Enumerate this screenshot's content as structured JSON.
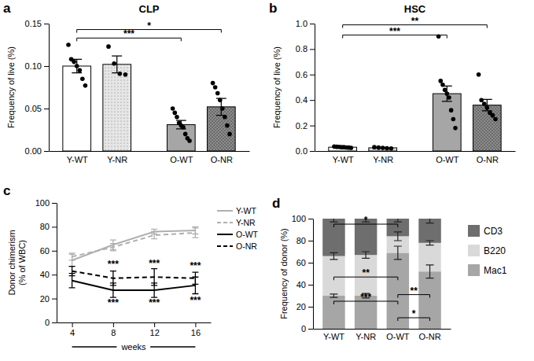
{
  "chart_data": [
    {
      "panel": "a",
      "type": "bar",
      "title": "CLP",
      "y_label": "Frequency of live (%)",
      "categories": [
        "Y-WT",
        "Y-NR",
        "O-WT",
        "O-NR"
      ],
      "values": [
        0.1,
        0.102,
        0.031,
        0.052
      ],
      "errors": [
        0.008,
        0.01,
        0.005,
        0.01
      ],
      "points": [
        [
          0.125,
          0.108,
          0.105,
          0.1,
          0.095,
          0.085,
          0.077
        ],
        [
          0.123,
          0.103,
          0.091,
          0.09
        ],
        [
          0.05,
          0.045,
          0.04,
          0.033,
          0.03,
          0.028,
          0.02,
          0.015,
          0.012
        ],
        [
          0.08,
          0.075,
          0.068,
          0.06,
          0.05,
          0.04,
          0.03,
          0.02
        ]
      ],
      "colors": [
        "#ffffff",
        "#e6e6e6",
        "#a6a6a6",
        "#8c8c8c"
      ],
      "ylim": [
        0,
        0.15
      ],
      "yticks": [
        {
          "value": 0,
          "label": "0.00"
        },
        0.05,
        {
          "value": 0.1,
          "label": "0.10"
        },
        0.15
      ],
      "significance": [
        {
          "from": "Y-WT",
          "to": "O-WT",
          "label": "***",
          "y": 0.133
        },
        {
          "from": "Y-WT",
          "to": "O-NR",
          "label": "*",
          "y": 0.143
        }
      ]
    },
    {
      "panel": "b",
      "type": "bar",
      "title": "HSC",
      "y_label": "Frequency of live (%)",
      "categories": [
        "Y-WT",
        "Y-NR",
        "O-WT",
        "O-NR"
      ],
      "values": [
        0.03,
        0.025,
        0.45,
        0.36
      ],
      "errors": [
        0.003,
        0.003,
        0.06,
        0.045
      ],
      "points": [
        [
          0.035,
          0.033,
          0.032,
          0.03,
          0.03,
          0.028,
          0.027,
          0.025
        ],
        [
          0.03,
          0.027,
          0.025,
          0.022,
          0.02
        ],
        [
          0.9,
          0.55,
          0.52,
          0.48,
          0.45,
          0.42,
          0.32,
          0.25,
          0.18
        ],
        [
          0.6,
          0.4,
          0.37,
          0.34,
          0.3,
          0.28,
          0.25
        ]
      ],
      "colors": [
        "#ffffff",
        "#e6e6e6",
        "#a6a6a6",
        "#8c8c8c"
      ],
      "ylim": [
        0,
        1
      ],
      "yticks": [
        {
          "value": 0,
          "label": "0.0"
        },
        0.2,
        0.4,
        0.6,
        0.8,
        {
          "value": 1,
          "label": "1.0"
        }
      ],
      "significance": [
        {
          "from": "Y-WT",
          "to": "O-WT",
          "label": "***",
          "y": 0.91
        },
        {
          "from": "Y-WT",
          "to": "O-NR",
          "label": "**",
          "y": 0.99
        }
      ]
    },
    {
      "panel": "c",
      "type": "line",
      "y_label": [
        "Donor chimerism",
        "(% of WBC)"
      ],
      "x_label": "weeks",
      "x": [
        4,
        8,
        12,
        16
      ],
      "xlim": [
        2.5,
        17.5
      ],
      "xticks": [
        4,
        8,
        12,
        16
      ],
      "ylim": [
        0,
        100
      ],
      "yticks": [
        0,
        20,
        40,
        60,
        80,
        100
      ],
      "legend": "upper right",
      "series": [
        {
          "name": "Y-WT",
          "color": "#b0b0b0",
          "line_style": "solid",
          "values": [
            52,
            65,
            76,
            77
          ],
          "errors": [
            5,
            4,
            2,
            3
          ]
        },
        {
          "name": "Y-NR",
          "color": "#b0b0b0",
          "line_style": "dashed",
          "values": [
            55,
            63,
            73,
            75
          ],
          "errors": [
            3,
            3,
            3,
            4
          ]
        },
        {
          "name": "O-WT",
          "color": "#000000",
          "line_style": "solid",
          "values": [
            35,
            27,
            27,
            31
          ],
          "errors": [
            6,
            6,
            6,
            7
          ]
        },
        {
          "name": "O-NR",
          "color": "#000000",
          "line_style": "dashed",
          "values": [
            43,
            37,
            38,
            37
          ],
          "errors": [
            4,
            6,
            7,
            5
          ]
        }
      ],
      "annotations": [
        {
          "text": "***",
          "x": 8,
          "y": 46
        },
        {
          "text": "***",
          "x": 12,
          "y": 47
        },
        {
          "text": "***",
          "x": 16,
          "y": 45
        },
        {
          "text": "***",
          "x": 8,
          "y": 14
        },
        {
          "text": "***",
          "x": 12,
          "y": 14
        },
        {
          "text": "***",
          "x": 16,
          "y": 16
        }
      ]
    },
    {
      "panel": "d",
      "type": "bar",
      "stacked": true,
      "y_label": "Frequency of donor (%)",
      "categories": [
        "Y-WT",
        "Y-NR",
        "O-WT",
        "O-NR"
      ],
      "ylim": [
        0,
        100
      ],
      "yticks": [
        0,
        20,
        40,
        60,
        80,
        100
      ],
      "legend": "right",
      "series": [
        {
          "name": "Mac1",
          "color": "#a6a6a6",
          "values": [
            30,
            30,
            69,
            52
          ],
          "errors": [
            1.5,
            2,
            6,
            6
          ]
        },
        {
          "name": "B220",
          "color": "#d9d9d9",
          "values": [
            36,
            37,
            15,
            26
          ],
          "errors": [
            3,
            3,
            4,
            2
          ]
        },
        {
          "name": "CD3",
          "color": "#6e6e6e",
          "values": [
            34,
            33,
            16,
            22
          ],
          "errors": [
            3,
            3,
            3,
            4
          ]
        }
      ],
      "significance": [
        {
          "from": "Y-WT",
          "to": "O-WT",
          "label": "*",
          "y": 95
        },
        {
          "from": "Y-WT",
          "to": "O-WT",
          "label": "**",
          "y": 47
        },
        {
          "from": "Y-WT",
          "to": "O-WT",
          "label": "***",
          "y": 25
        },
        {
          "from": "O-WT",
          "to": "O-NR",
          "label": "**",
          "y": 31
        },
        {
          "from": "O-WT",
          "to": "O-NR",
          "label": "*",
          "y": 10
        }
      ]
    }
  ]
}
